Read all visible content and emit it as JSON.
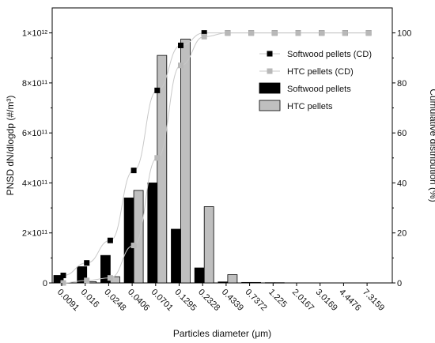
{
  "chart_data": {
    "type": "bar",
    "categories": [
      "0.0091",
      "0.016",
      "0.0248",
      "0.0406",
      "0.0701",
      "0.1295",
      "0.2328",
      "0.4339",
      "0.7372",
      "1.225",
      "2.0167",
      "3.0169",
      "4.4476",
      "7.3159"
    ],
    "xlabel": "Particles diameter (μm)",
    "ylabel": "PNSD dN/dlogdp  (#/m³)",
    "y2label": "Cumulative distribution (%)",
    "ylim": [
      0,
      1100000000000.0
    ],
    "y2lim": [
      0,
      110
    ],
    "yticks": [
      {
        "value": 0,
        "label": "0"
      },
      {
        "value": 200000000000.0,
        "label": "2×10¹¹"
      },
      {
        "value": 400000000000.0,
        "label": "4×10¹¹"
      },
      {
        "value": 600000000000.0,
        "label": "6×10¹¹"
      },
      {
        "value": 800000000000.0,
        "label": "8×10¹¹"
      },
      {
        "value": 1000000000000.0,
        "label": "1×10¹²"
      }
    ],
    "y2ticks": [
      0,
      20,
      40,
      60,
      80,
      100
    ],
    "series": [
      {
        "name": "Softwood pellets",
        "kind": "bar",
        "color": "#000000",
        "values": [
          30000000000.0,
          65000000000.0,
          110000000000.0,
          340000000000.0,
          400000000000.0,
          215000000000.0,
          60000000000.0,
          4000000000.0,
          2000000000.0,
          1000000000.0,
          0,
          0,
          0,
          0
        ]
      },
      {
        "name": "HTC pellets",
        "kind": "bar",
        "color": "#bfbfbf",
        "values": [
          0,
          5000000000.0,
          25000000000.0,
          370000000000.0,
          910000000000.0,
          975000000000.0,
          305000000000.0,
          33000000000.0,
          2000000000.0,
          1000000000.0,
          0,
          0,
          0,
          0
        ]
      },
      {
        "name": "Softwood pellets (CD)",
        "kind": "cd",
        "color": "#000000",
        "values": [
          3,
          8,
          17,
          45,
          77,
          95,
          100,
          100,
          100,
          100,
          100,
          100,
          100,
          100
        ]
      },
      {
        "name": "HTC pellets (CD)",
        "kind": "cd",
        "color": "#b8b8b8",
        "values": [
          0,
          1,
          2,
          15,
          50,
          87,
          98.5,
          100,
          100,
          100,
          100,
          100,
          100,
          100
        ]
      }
    ],
    "legend_position": "top-right",
    "grid": false
  }
}
